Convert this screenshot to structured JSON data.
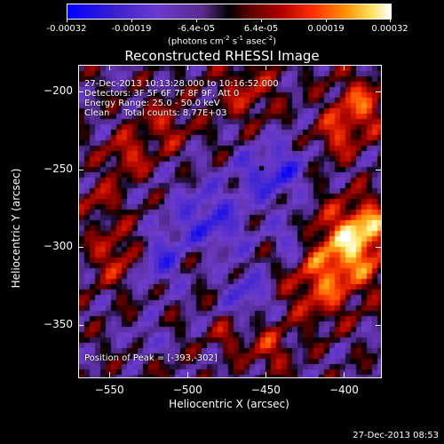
{
  "colorbar": {
    "ticks": [
      "-0.00032",
      "-0.00019",
      "-6.4e-05",
      "6.4e-05",
      "0.00019",
      "0.00032"
    ],
    "units_text": "(photons cm",
    "units_exp1": "-2",
    "units_mid1": " s",
    "units_exp2": "-1",
    "units_mid2": " asec",
    "units_exp3": "-2",
    "units_end": ")"
  },
  "chart_data": {
    "type": "heatmap",
    "title": "Reconstructed RHESSI Image",
    "xlabel": "Heliocentric X (arcsec)",
    "ylabel": "Heliocentric Y (arcsec)",
    "xlim": [
      -570,
      -377
    ],
    "ylim": [
      -383,
      -183
    ],
    "x_ticks": [
      -550,
      -500,
      -450,
      -400
    ],
    "y_ticks": [
      -200,
      -250,
      -300,
      -350
    ],
    "x_tick_labels": [
      "-550",
      "-500",
      "-450",
      "-400"
    ],
    "y_tick_labels": [
      "-200",
      "-250",
      "-300",
      "-350"
    ],
    "colorbar_range": [
      -0.00032,
      0.00032
    ],
    "peak_position": [
      -393,
      -302
    ]
  },
  "annotations": {
    "time_range": "27-Dec-2013 10:13:28.000 to 10:16:52.000",
    "detectors": "Detectors: 3F 5F 6F 7F 8F 9F, Att 0",
    "energy": "Energy Range: 25.0 - 50.0 keV",
    "clean": "Clean     Total counts: 8.77E+03",
    "peak": "Position of Peak = [-393,-302]"
  },
  "footer": {
    "timestamp": "27-Dec-2013 08:53"
  }
}
